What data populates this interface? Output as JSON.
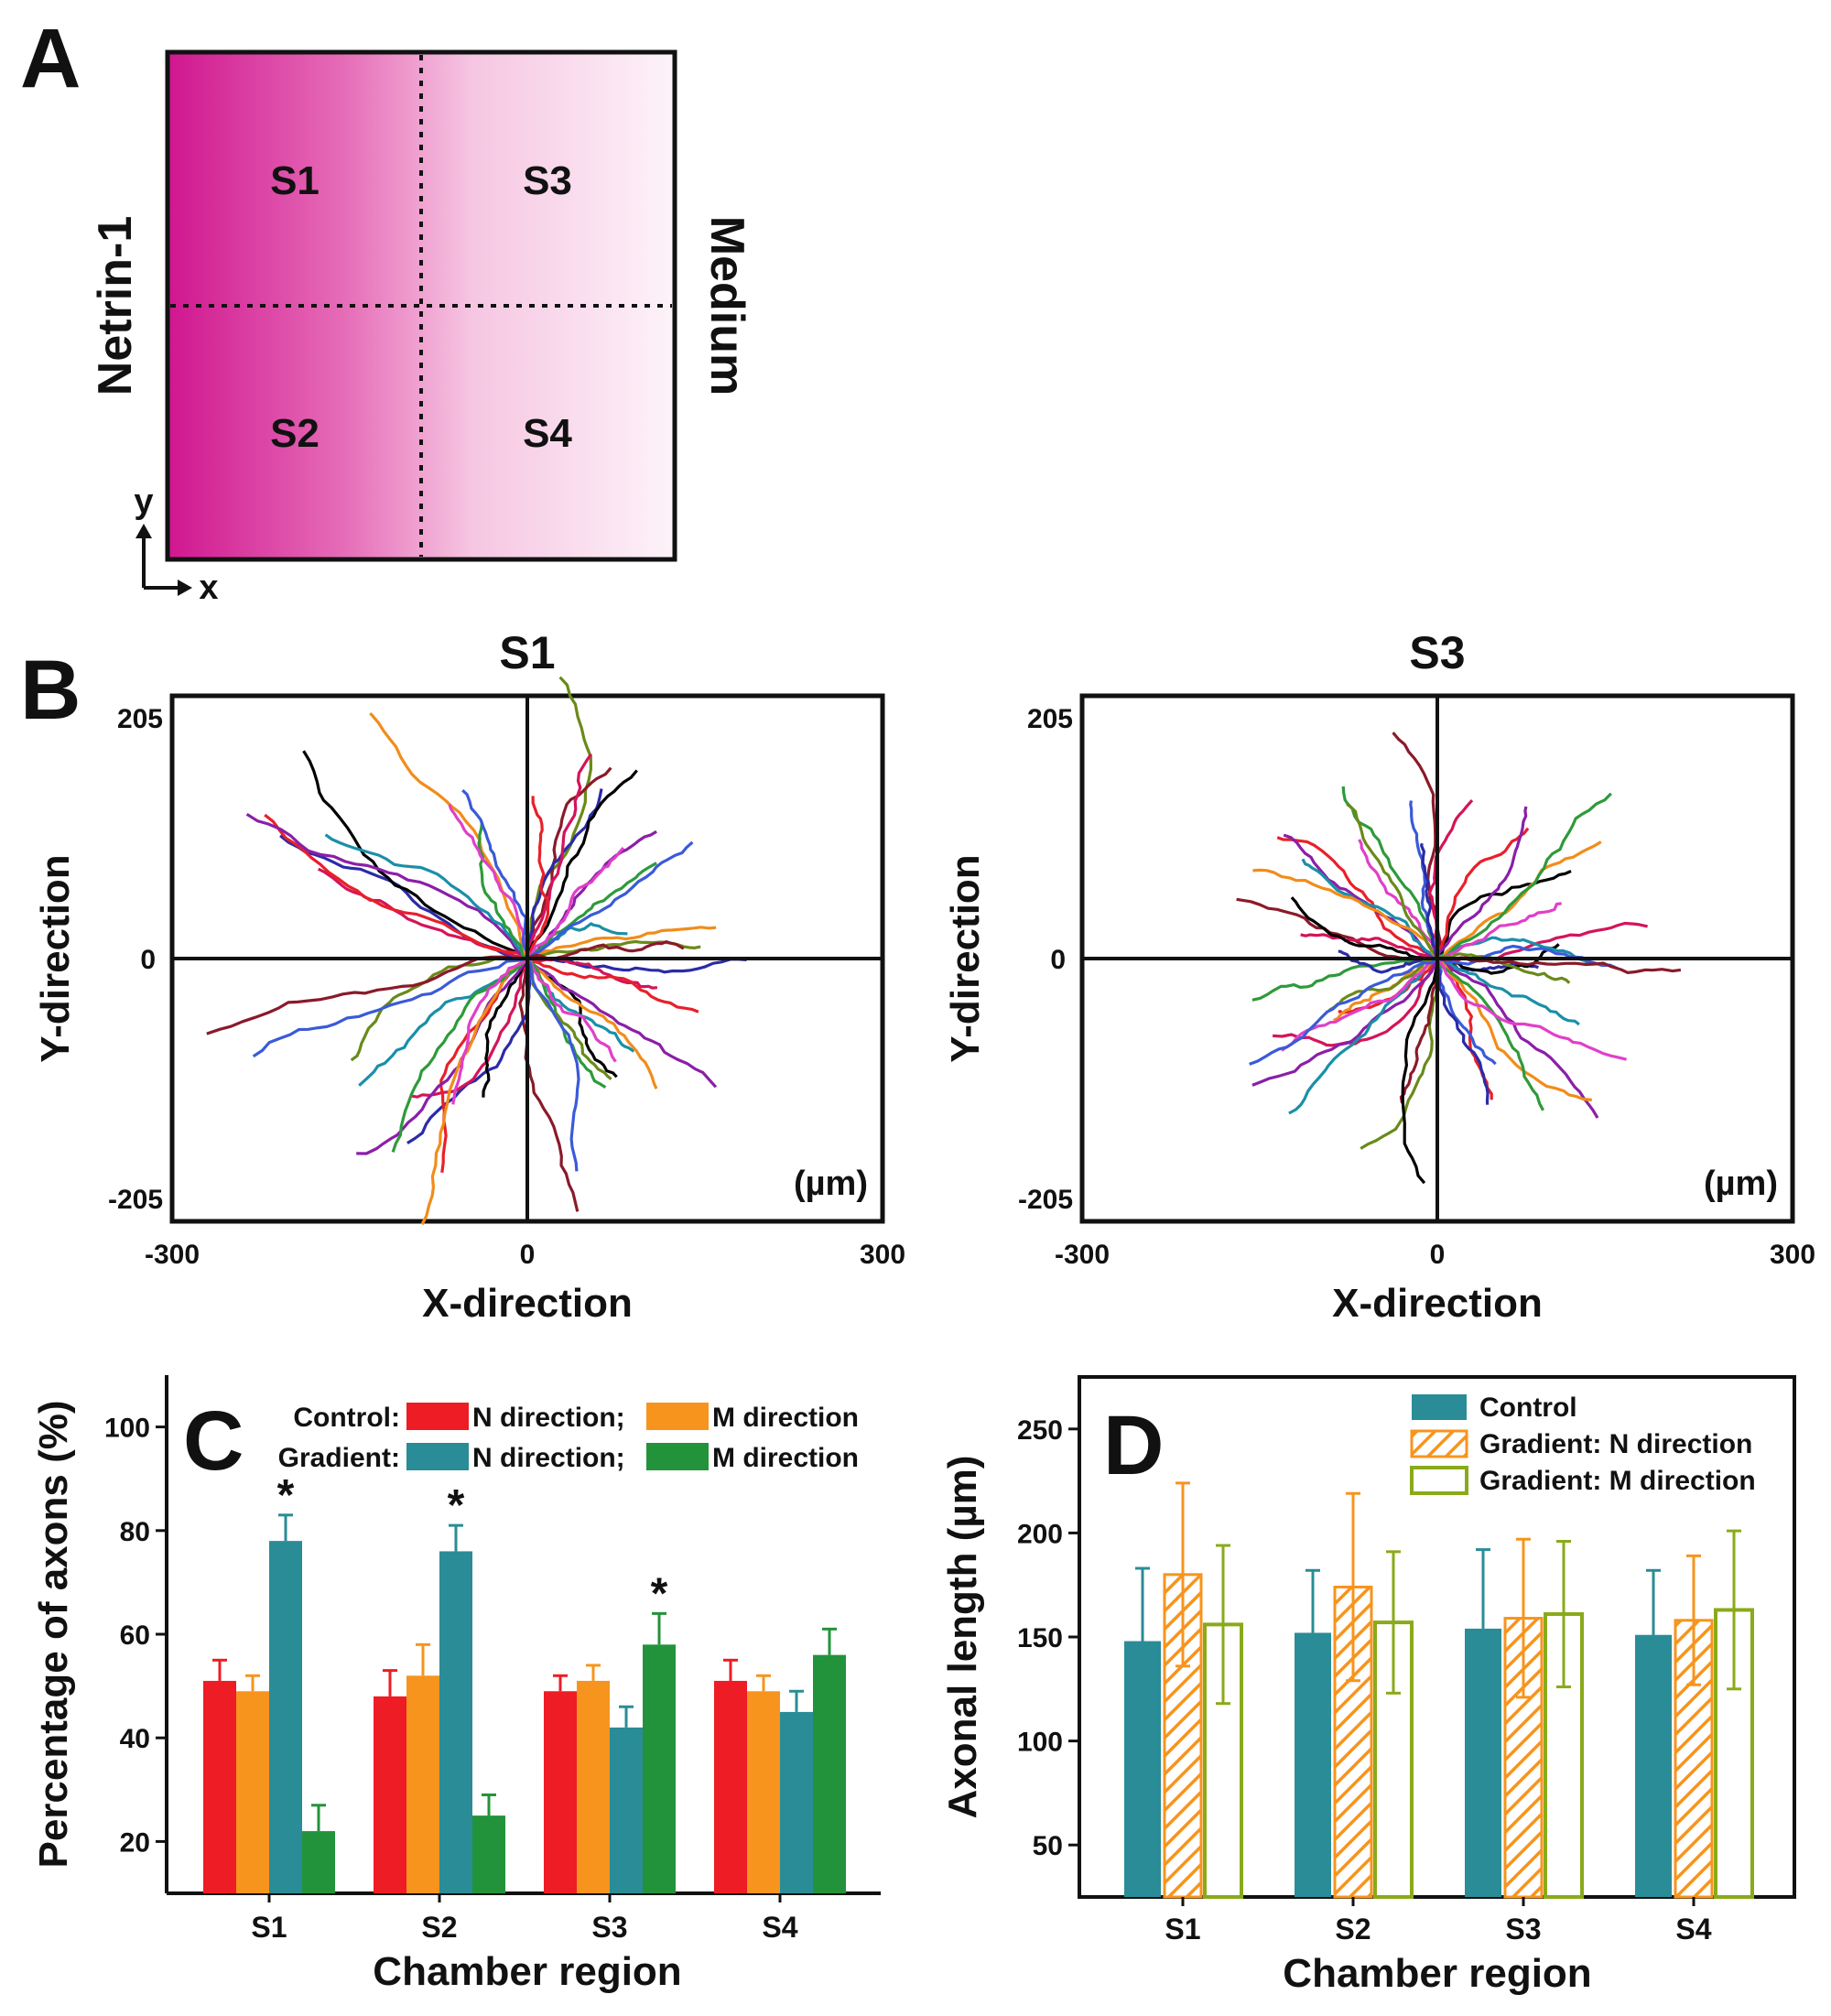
{
  "panels": {
    "A": {
      "letter": "A",
      "quadrants": [
        "S1",
        "S3",
        "S2",
        "S4"
      ],
      "left_label": "Netrin-1",
      "right_label": "Medium",
      "axis_y": "y",
      "axis_x": "x",
      "colors": {
        "gradient_start": "#d0168f",
        "gradient_end": "#fdf3f9"
      }
    },
    "B": {
      "letter": "B",
      "unit_label": "(µm)",
      "plots": [
        {
          "title": "S1",
          "xlim": [
            -300,
            300
          ],
          "ylim": [
            -205,
            205
          ],
          "xticks": [
            "-300",
            "0",
            "300"
          ],
          "yticks": [
            "205",
            "0",
            "-205"
          ],
          "xlabel": "X-direction",
          "ylabel": "Y-direction"
        },
        {
          "title": "S3",
          "xlim": [
            -300,
            300
          ],
          "ylim": [
            -205,
            205
          ],
          "xticks": [
            "-300",
            "0",
            "300"
          ],
          "yticks": [
            "205",
            "0",
            "-205"
          ],
          "xlabel": "X-direction",
          "ylabel": "Y-direction"
        }
      ],
      "trace_colors": [
        "#2b2ba8",
        "#d4145a",
        "#000000",
        "#e8202a",
        "#8a1fa8",
        "#1a8fa8",
        "#f28c1a",
        "#2e9a3a",
        "#e040c8",
        "#6a8a1a",
        "#3a5ad8",
        "#8a1a2a"
      ]
    }
  },
  "chart_data": [
    {
      "type": "bar",
      "panel": "C",
      "categories": [
        "S1",
        "S2",
        "S3",
        "S4"
      ],
      "xlabel": "Chamber region",
      "ylabel": "Percentage of axons (%)",
      "ylim": [
        10,
        110
      ],
      "yticks": [
        "20",
        "40",
        "60",
        "80",
        "100"
      ],
      "legend": {
        "rows": [
          {
            "label": "Control:",
            "items": [
              "N direction;",
              "M direction"
            ]
          },
          {
            "label": "Gradient:",
            "items": [
              "N direction;",
              "M direction"
            ]
          }
        ]
      },
      "series": [
        {
          "group": "Control",
          "name": "N direction",
          "color": "#ee1c24",
          "values": [
            51,
            48,
            49,
            51
          ],
          "errors": [
            4,
            5,
            3,
            4
          ]
        },
        {
          "group": "Control",
          "name": "M direction",
          "color": "#f7941d",
          "values": [
            49,
            52,
            51,
            49
          ],
          "errors": [
            3,
            6,
            3,
            3
          ]
        },
        {
          "group": "Gradient",
          "name": "N direction",
          "color": "#2a8c96",
          "values": [
            78,
            76,
            42,
            45
          ],
          "errors": [
            5,
            5,
            4,
            4
          ]
        },
        {
          "group": "Gradient",
          "name": "M direction",
          "color": "#22933b",
          "values": [
            22,
            25,
            58,
            56
          ],
          "errors": [
            5,
            4,
            6,
            5
          ]
        }
      ],
      "annotations": [
        {
          "text": "*",
          "category": "S1",
          "series_index": 2
        },
        {
          "text": "*",
          "category": "S2",
          "series_index": 2
        },
        {
          "text": "*",
          "category": "S3",
          "series_index": 3
        }
      ]
    },
    {
      "type": "bar",
      "panel": "D",
      "categories": [
        "S1",
        "S2",
        "S3",
        "S4"
      ],
      "xlabel": "Chamber region",
      "ylabel": "Axonal length (µm)",
      "ylim": [
        25,
        275
      ],
      "yticks": [
        "50",
        "100",
        "150",
        "200",
        "250"
      ],
      "series": [
        {
          "name": "Control",
          "color": "#2a8c96",
          "style": "solid",
          "values": [
            148,
            152,
            154,
            151
          ],
          "errors": [
            35,
            30,
            38,
            31
          ]
        },
        {
          "name": "Gradient: N direction",
          "color": "#f7941d",
          "style": "hatch",
          "values": [
            180,
            174,
            159,
            158
          ],
          "errors": [
            44,
            45,
            38,
            31
          ]
        },
        {
          "name": "Gradient: M direction",
          "color": "#8aaa1a",
          "style": "outline",
          "values": [
            156,
            157,
            161,
            163
          ],
          "errors": [
            38,
            34,
            35,
            38
          ]
        }
      ]
    }
  ]
}
